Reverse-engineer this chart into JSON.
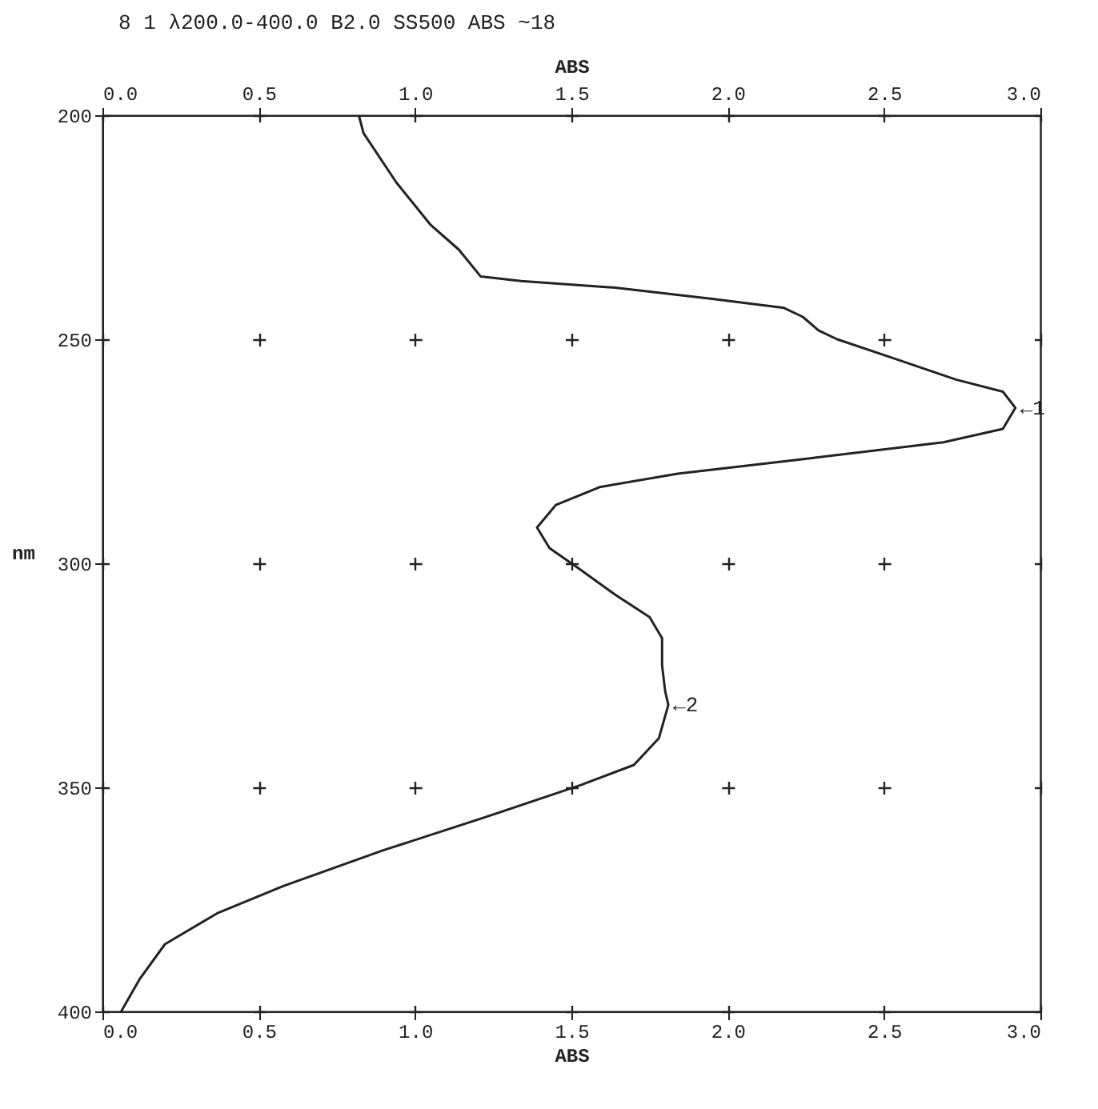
{
  "chart_data": {
    "type": "line",
    "title": "8  1 λ200.0-400.0 B2.0 SS500  ABS ~18",
    "xlabel": "ABS",
    "x2label": "ABS",
    "ylabel": "nm",
    "color": "#222222",
    "x": [
      0.82,
      0.835,
      0.94,
      1.05,
      1.14,
      1.21,
      1.34,
      1.64,
      1.95,
      2.18,
      2.24,
      2.29,
      2.35,
      2.52,
      2.73,
      2.88,
      2.92,
      2.88,
      2.69,
      2.27,
      1.84,
      1.59,
      1.45,
      1.39,
      1.43,
      1.52,
      1.64,
      1.75,
      1.79,
      1.79,
      1.8,
      1.81,
      1.78,
      1.7,
      1.53,
      1.21,
      0.9,
      0.58,
      0.37,
      0.2,
      0.12,
      0.06
    ],
    "values": [
      200,
      204,
      215,
      224.5,
      230,
      236,
      237,
      238.5,
      241,
      243,
      245,
      248,
      250,
      254,
      259,
      261.7,
      265.3,
      270,
      273,
      276.5,
      280,
      283,
      287,
      292,
      296.6,
      301,
      307,
      312,
      316.7,
      322.8,
      328.6,
      331.6,
      339,
      345,
      349.5,
      357,
      364,
      372,
      378,
      385,
      392.7,
      400
    ],
    "xlim": [
      0,
      3
    ],
    "xticks": [
      {
        "value": 0,
        "label": "0.0"
      },
      0.5,
      {
        "value": 1,
        "label": "1.0"
      },
      1.5,
      {
        "value": 2,
        "label": "2.0"
      },
      2.5,
      {
        "value": 3,
        "label": "3.0"
      }
    ],
    "x2lim": [
      0,
      3
    ],
    "x2ticks": [
      {
        "value": 0,
        "label": "0.0"
      },
      0.5,
      {
        "value": 1,
        "label": "1.0"
      },
      1.5,
      {
        "value": 2,
        "label": "2.0"
      },
      2.5,
      {
        "value": 3,
        "label": "3.0"
      }
    ],
    "ylim": [
      400,
      200
    ],
    "yticks": [
      200,
      250,
      300,
      350,
      400
    ],
    "grid": true,
    "annotations": [
      {
        "text": "←1",
        "x": 2.92,
        "y": 265.3
      },
      {
        "text": "←2",
        "x": 1.81,
        "y": 331.6
      }
    ]
  }
}
